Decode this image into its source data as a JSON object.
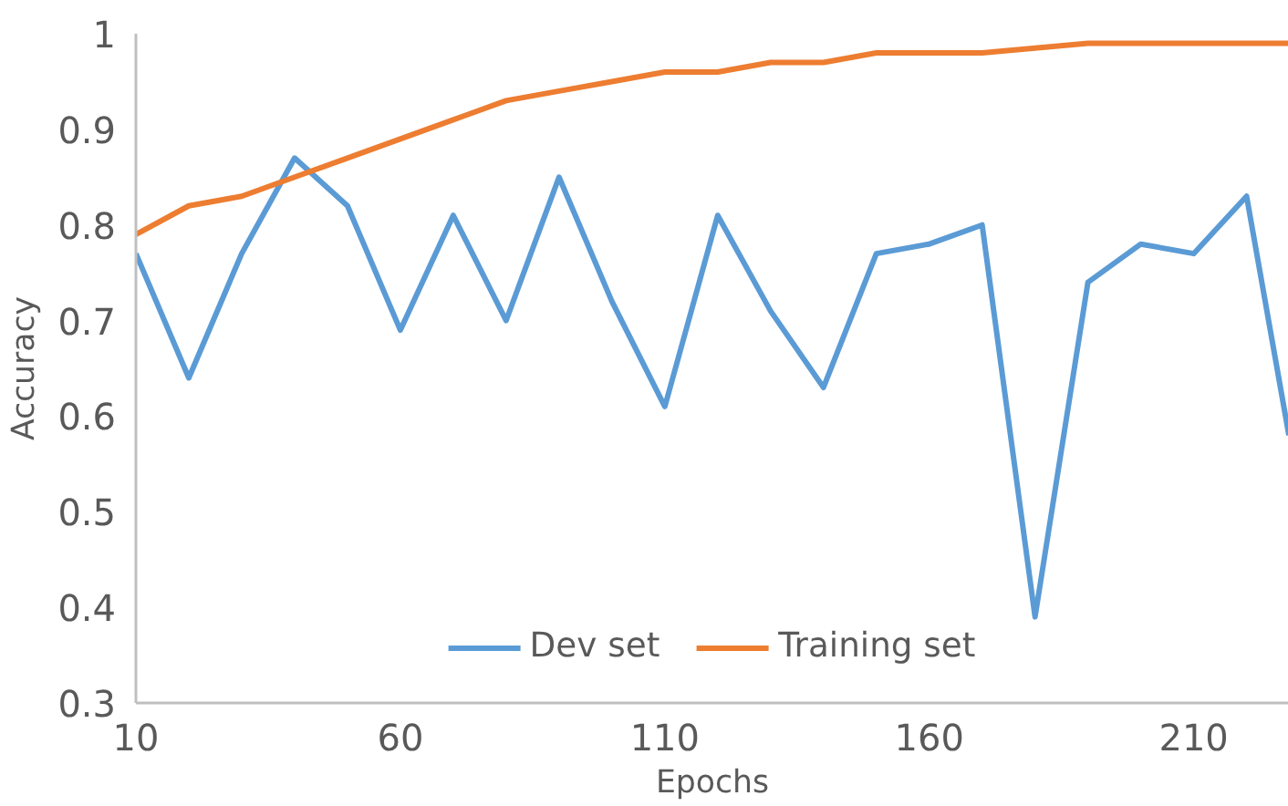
{
  "chart_data": {
    "type": "line",
    "xlabel": "Epochs",
    "ylabel": "Accuracy",
    "x": [
      10,
      20,
      30,
      40,
      50,
      60,
      70,
      80,
      90,
      100,
      110,
      120,
      130,
      140,
      150,
      160,
      170,
      180,
      190,
      200,
      210,
      220,
      228
    ],
    "series": [
      {
        "name": "Dev set",
        "color": "#5b9bd5",
        "values": [
          0.77,
          0.64,
          0.77,
          0.87,
          0.82,
          0.69,
          0.81,
          0.7,
          0.85,
          0.72,
          0.61,
          0.81,
          0.71,
          0.63,
          0.77,
          0.78,
          0.8,
          0.39,
          0.74,
          0.78,
          0.77,
          0.83,
          0.58
        ]
      },
      {
        "name": "Training set",
        "color": "#ed7d31",
        "values": [
          0.79,
          0.82,
          0.83,
          0.85,
          0.87,
          0.89,
          0.91,
          0.93,
          0.94,
          0.95,
          0.96,
          0.96,
          0.97,
          0.97,
          0.98,
          0.98,
          0.98,
          0.985,
          0.99,
          0.99,
          0.99,
          0.99,
          0.99
        ]
      }
    ],
    "xlim": [
      10,
      228
    ],
    "xticks": [
      10,
      60,
      110,
      160,
      210
    ],
    "ylim": [
      0.3,
      1
    ],
    "yticks": [
      0.3,
      0.4,
      0.5,
      0.6,
      0.7,
      0.8,
      0.9,
      {
        "value": 1,
        "label": "1"
      }
    ],
    "grid": false,
    "legend": "bottom",
    "line_style": "solid"
  }
}
